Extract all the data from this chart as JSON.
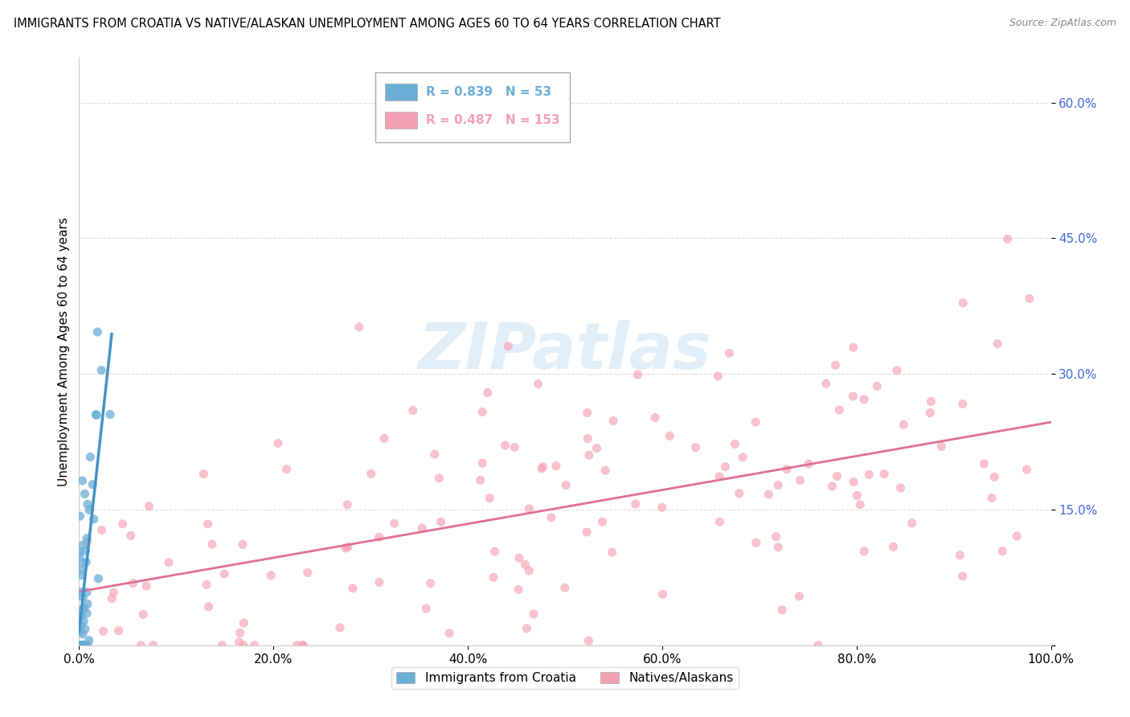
{
  "title": "IMMIGRANTS FROM CROATIA VS NATIVE/ALASKAN UNEMPLOYMENT AMONG AGES 60 TO 64 YEARS CORRELATION CHART",
  "source": "Source: ZipAtlas.com",
  "ylabel": "Unemployment Among Ages 60 to 64 years",
  "xlim": [
    0,
    1.0
  ],
  "ylim": [
    0,
    0.65
  ],
  "xticks": [
    0.0,
    0.2,
    0.4,
    0.6,
    0.8,
    1.0
  ],
  "xticklabels": [
    "0.0%",
    "20.0%",
    "40.0%",
    "60.0%",
    "80.0%",
    "100.0%"
  ],
  "ytick_positions": [
    0.0,
    0.15,
    0.3,
    0.45,
    0.6
  ],
  "yticklabels": [
    "",
    "15.0%",
    "30.0%",
    "45.0%",
    "60.0%"
  ],
  "watermark": "ZIPatlas",
  "blue_R": 0.839,
  "blue_N": 53,
  "pink_R": 0.487,
  "pink_N": 153,
  "blue_color": "#6baed6",
  "pink_color": "#f4a0b5",
  "blue_line_color": "#4292c6",
  "pink_line_color": "#e07090",
  "ytick_color": "#4169E1",
  "legend_label_blue": "Immigrants from Croatia",
  "legend_label_pink": "Natives/Alaskans",
  "background_color": "#ffffff",
  "grid_color": "#d0d0d0",
  "blue_seed": 12,
  "pink_seed": 7
}
